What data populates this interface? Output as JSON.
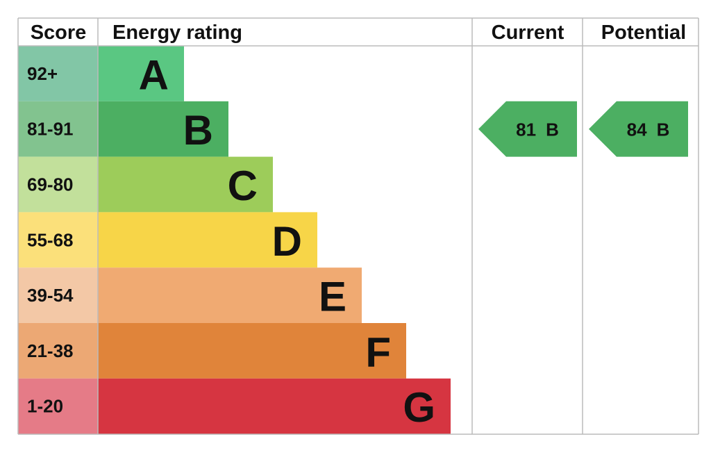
{
  "header": {
    "score": "Score",
    "energy_rating": "Energy rating",
    "current": "Current",
    "potential": "Potential"
  },
  "bands": [
    {
      "score": "92+",
      "letter": "A"
    },
    {
      "score": "81-91",
      "letter": "B"
    },
    {
      "score": "69-80",
      "letter": "C"
    },
    {
      "score": "55-68",
      "letter": "D"
    },
    {
      "score": "39-54",
      "letter": "E"
    },
    {
      "score": "21-38",
      "letter": "F"
    },
    {
      "score": "1-20",
      "letter": "G"
    }
  ],
  "current": {
    "value": 81,
    "letter": "B"
  },
  "potential": {
    "value": 84,
    "letter": "B"
  }
}
